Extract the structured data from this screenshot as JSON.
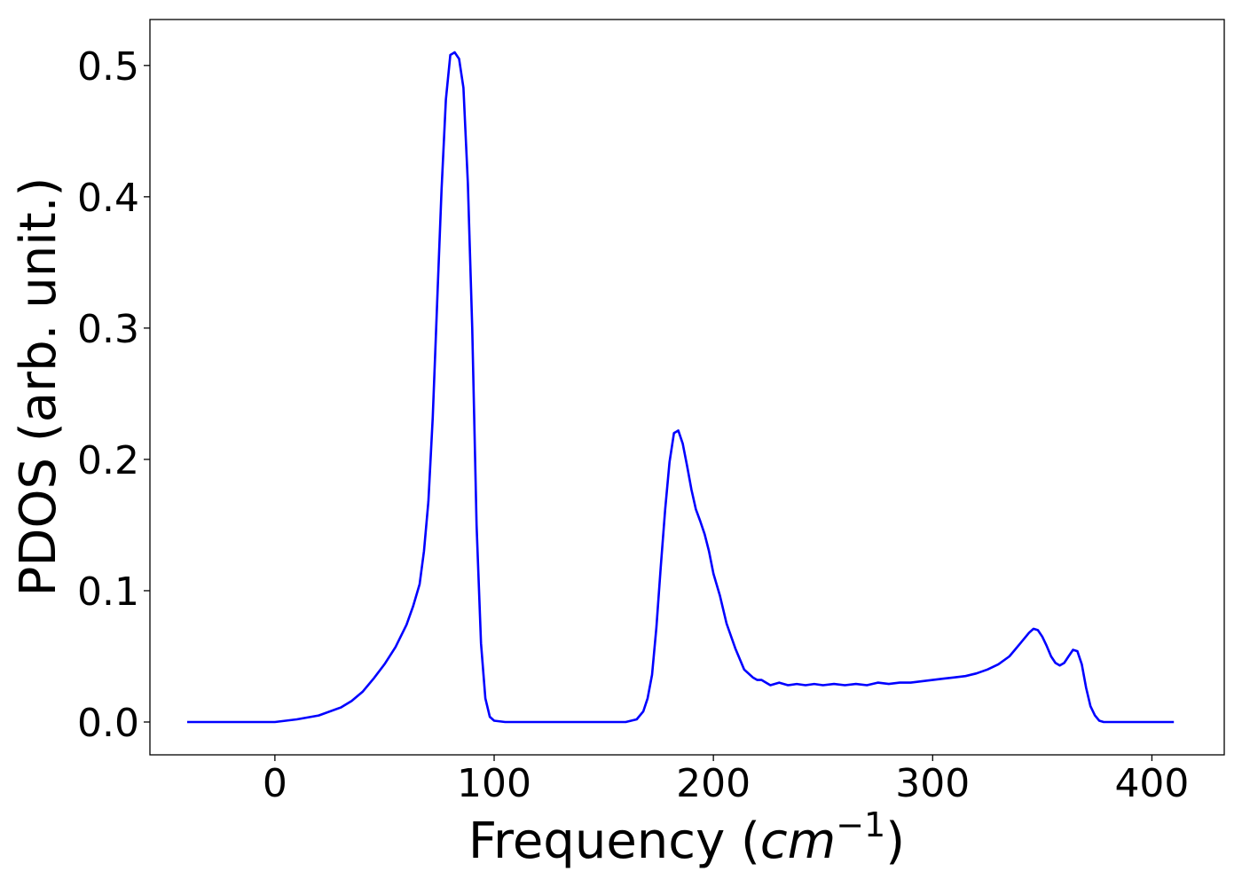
{
  "chart_data": {
    "type": "line",
    "title": "",
    "xlabel": "Frequency (",
    "xlabel_math": "cm",
    "xlabel_sup": "−1",
    "xlabel_close": ")",
    "ylabel": "PDOS (arb. unit.)",
    "xlim": [
      -57,
      433
    ],
    "ylim": [
      -0.025,
      0.535
    ],
    "xticks": [
      0,
      100,
      200,
      300,
      400
    ],
    "xtick_labels": [
      "0",
      "100",
      "200",
      "300",
      "400"
    ],
    "yticks": [
      0.0,
      0.1,
      0.2,
      0.3,
      0.4,
      0.5
    ],
    "ytick_labels": [
      "0.0",
      "0.1",
      "0.2",
      "0.3",
      "0.4",
      "0.5"
    ],
    "grid": false,
    "legend": "none",
    "series": [
      {
        "color": "#0000ff",
        "x": [
          -40,
          -20,
          0,
          10,
          20,
          30,
          35,
          40,
          45,
          50,
          55,
          60,
          63,
          66,
          68,
          70,
          72,
          74,
          76,
          78,
          80,
          82,
          84,
          86,
          88,
          90,
          92,
          94,
          96,
          98,
          100,
          105,
          110,
          120,
          140,
          160,
          165,
          168,
          170,
          172,
          174,
          176,
          178,
          180,
          182,
          184,
          186,
          188,
          190,
          192,
          194,
          196,
          198,
          200,
          203,
          206,
          210,
          214,
          218,
          220,
          222,
          224,
          226,
          230,
          234,
          238,
          242,
          246,
          250,
          255,
          260,
          265,
          270,
          275,
          280,
          285,
          290,
          295,
          300,
          305,
          310,
          315,
          320,
          325,
          330,
          335,
          340,
          344,
          346,
          348,
          350,
          352,
          354,
          356,
          358,
          360,
          362,
          364,
          366,
          368,
          370,
          372,
          374,
          376,
          378,
          380,
          384,
          390,
          410
        ],
        "values": [
          0.0,
          0.0,
          0.0,
          0.002,
          0.005,
          0.011,
          0.016,
          0.023,
          0.033,
          0.044,
          0.057,
          0.074,
          0.088,
          0.105,
          0.13,
          0.168,
          0.232,
          0.32,
          0.405,
          0.474,
          0.508,
          0.51,
          0.505,
          0.483,
          0.41,
          0.3,
          0.15,
          0.06,
          0.018,
          0.004,
          0.001,
          0.0,
          0.0,
          0.0,
          0.0,
          0.0,
          0.002,
          0.008,
          0.018,
          0.036,
          0.072,
          0.118,
          0.162,
          0.198,
          0.22,
          0.222,
          0.212,
          0.195,
          0.177,
          0.162,
          0.153,
          0.143,
          0.13,
          0.113,
          0.096,
          0.075,
          0.056,
          0.04,
          0.034,
          0.032,
          0.032,
          0.03,
          0.028,
          0.03,
          0.028,
          0.029,
          0.028,
          0.029,
          0.028,
          0.029,
          0.028,
          0.029,
          0.028,
          0.03,
          0.029,
          0.03,
          0.03,
          0.031,
          0.032,
          0.033,
          0.034,
          0.035,
          0.037,
          0.04,
          0.044,
          0.05,
          0.06,
          0.068,
          0.071,
          0.07,
          0.065,
          0.058,
          0.05,
          0.045,
          0.043,
          0.045,
          0.05,
          0.055,
          0.054,
          0.044,
          0.026,
          0.012,
          0.005,
          0.001,
          0.0,
          0.0,
          0.0,
          0.0,
          0.0
        ]
      }
    ]
  }
}
